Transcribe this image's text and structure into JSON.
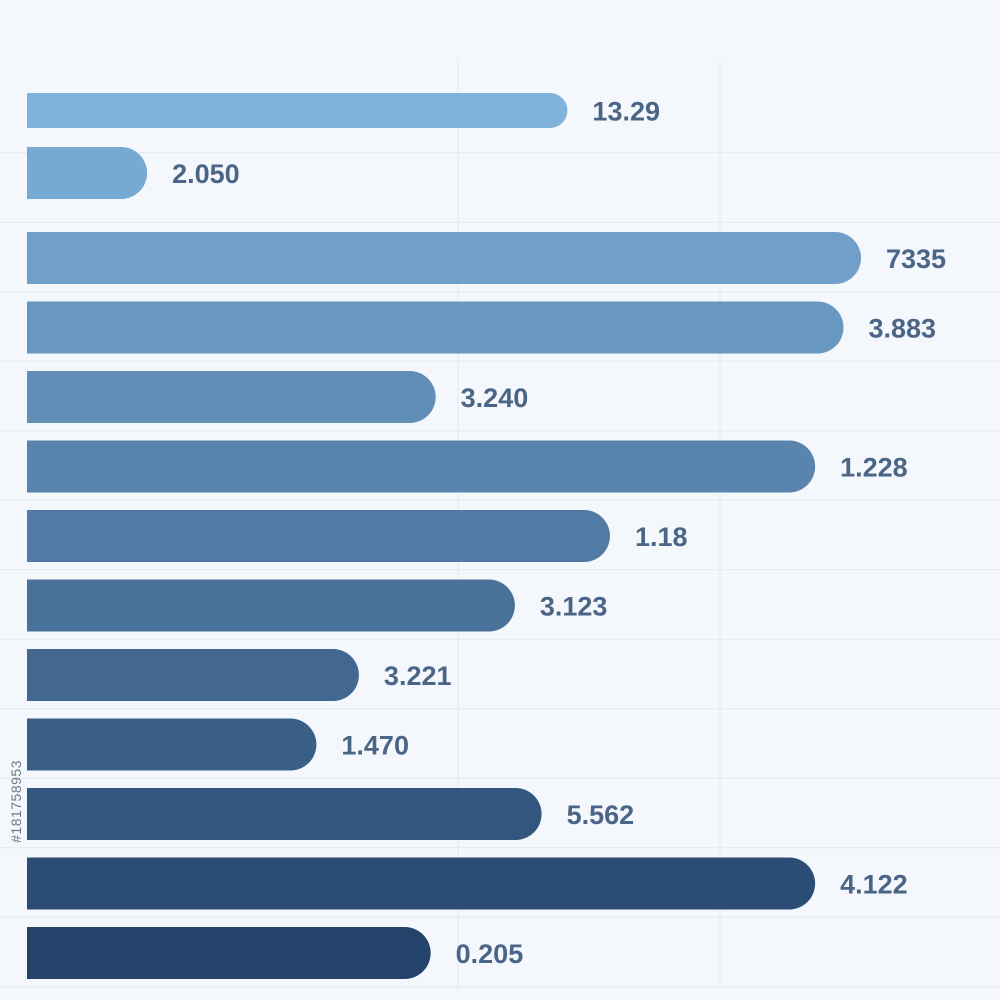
{
  "chart_data": {
    "type": "bar",
    "orientation": "horizontal",
    "categories": [
      "",
      "",
      "",
      "",
      "",
      "",
      "",
      "",
      "",
      "",
      "",
      "",
      ""
    ],
    "values": [
      13.29,
      2.05,
      7335,
      3.883,
      3.24,
      1.228,
      1.18,
      3.123,
      3.221,
      1.47,
      5.562,
      4.122,
      0.205
    ],
    "value_labels": [
      "13.29",
      "2.050",
      "7335",
      "3.883",
      "3.240",
      "1.228",
      "1.18",
      "3.123",
      "3.221",
      "1.470",
      "5.562",
      "4.122",
      "0.205"
    ],
    "bar_length_fractions": [
      0.648,
      0.144,
      1.0,
      0.979,
      0.49,
      0.945,
      0.699,
      0.585,
      0.398,
      0.347,
      0.617,
      0.945,
      0.484
    ],
    "title": "",
    "xlabel": "",
    "ylabel": "",
    "grid": true,
    "legend": "none",
    "bar_color_top": "#7fb3dc",
    "bar_color_bottom": "#23436b",
    "label_color": "#4a6585"
  },
  "watermark": {
    "stock_id": "#181758953"
  }
}
